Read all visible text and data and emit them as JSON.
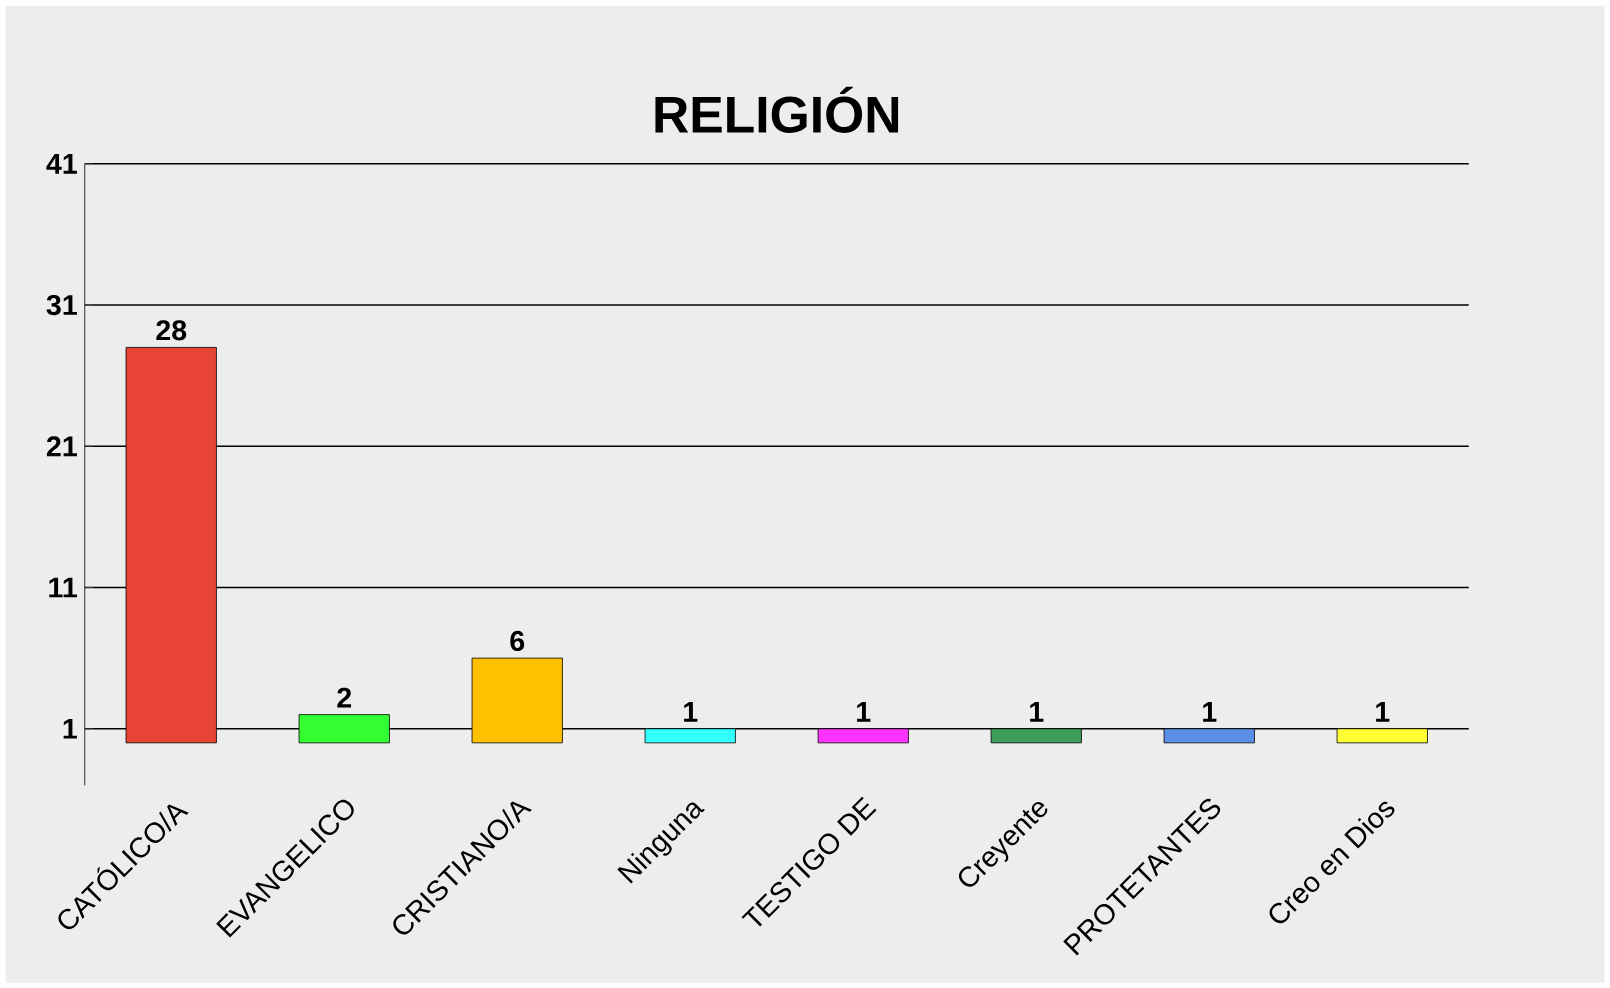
{
  "chart_data": {
    "type": "bar",
    "title": "RELIGIÓN",
    "categories": [
      "CATÓLICO/A",
      "EVANGELICO",
      "CRISTIANO/A",
      "Ninguna",
      "TESTIGO DE",
      "Creyente",
      "PROTETANTES",
      "Creo en Dios"
    ],
    "values": [
      28,
      2,
      6,
      1,
      1,
      1,
      1,
      1
    ],
    "colors": [
      "#e84436",
      "#33ff33",
      "#ffc000",
      "#33ffff",
      "#ff33ff",
      "#3c9c5a",
      "#5b8ee6",
      "#ffff33"
    ],
    "ylim": [
      -3,
      41
    ],
    "yticks": [
      1,
      11,
      21,
      31,
      41
    ],
    "grid": "y",
    "data_labels": true
  }
}
